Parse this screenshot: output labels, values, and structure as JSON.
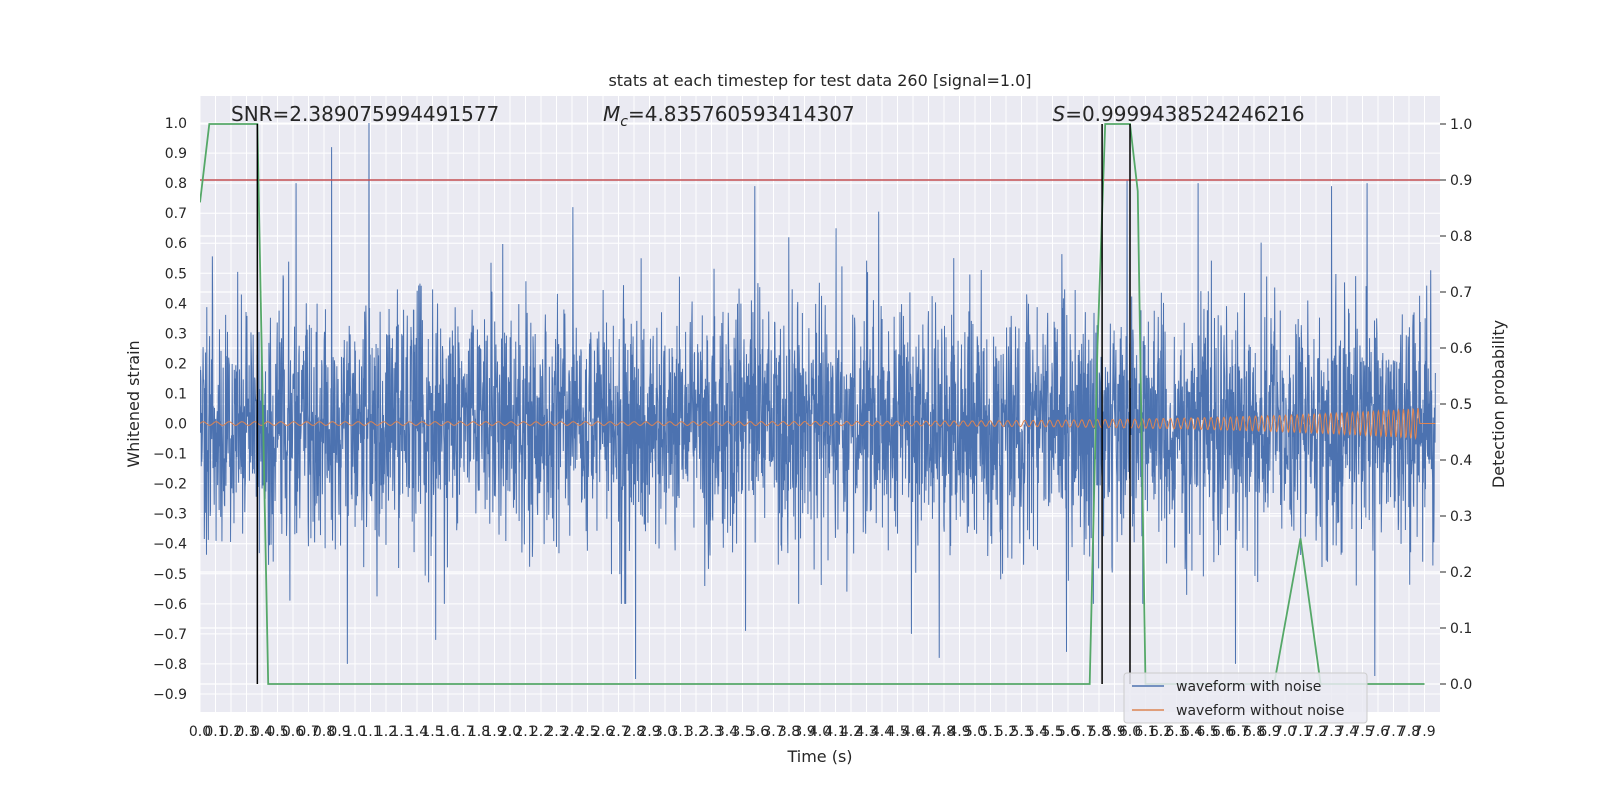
{
  "chart_data": {
    "type": "line",
    "title": "stats at each timestep for test data 260 [signal=1.0]",
    "xlabel": "Time (s)",
    "ylabel": "Whitened strain",
    "y2label": "Detection probability",
    "xlim": [
      0.0,
      8.0
    ],
    "ylim": [
      -0.96,
      1.09
    ],
    "y2lim": [
      -0.05,
      1.05
    ],
    "x_tick_step": 0.1,
    "x_tick_max": 7.9,
    "y_tick_min": -0.9,
    "y_tick_max": 1.0,
    "y_tick_step": 0.1,
    "y2_ticks": [
      0.0,
      0.1,
      0.2,
      0.3,
      0.4,
      0.5,
      0.6,
      0.7,
      0.8,
      0.9,
      1.0
    ],
    "grid": true,
    "legend_placement": "lower-right",
    "annotations": [
      {
        "key": "snr",
        "text": "SNR=2.389075994491577",
        "x": 0.2
      },
      {
        "key": "mc",
        "text": "=4.835760593414307",
        "prefix": "M",
        "sub": "c",
        "x": 2.6
      },
      {
        "key": "s",
        "text": "=0.9999438524246216",
        "prefix": "S",
        "x": 5.5
      }
    ],
    "series": [
      {
        "name": "waveform with noise",
        "color": "#4c72b0",
        "kind": "noise",
        "top_envelope_max": 1.0,
        "bottom_envelope_min": -0.85,
        "peaks": [
          [
            0.85,
            0.92
          ],
          [
            1.09,
            1.0
          ],
          [
            0.62,
            0.8
          ],
          [
            3.58,
            0.79
          ],
          [
            6.44,
            0.8
          ],
          [
            7.3,
            0.79
          ],
          [
            7.53,
            0.8
          ],
          [
            5.98,
            0.81
          ],
          [
            2.81,
            -0.85
          ],
          [
            4.77,
            -0.78
          ],
          [
            3.52,
            -0.69
          ],
          [
            0.95,
            -0.8
          ],
          [
            6.68,
            -0.8
          ],
          [
            7.58,
            -0.84
          ],
          [
            4.59,
            -0.7
          ],
          [
            5.59,
            -0.76
          ],
          [
            1.52,
            -0.72
          ]
        ]
      },
      {
        "name": "waveform without noise",
        "color": "#dd8452",
        "kind": "chirp",
        "amplitude_start": 0.006,
        "amplitude_end": 0.05,
        "merger_time": 7.86
      }
    ],
    "detection_probability": {
      "color": "#55a868",
      "x": [
        0.0,
        0.06,
        0.12,
        0.2,
        0.3,
        0.37,
        0.44,
        5.74,
        5.79,
        5.84,
        5.9,
        6.0,
        6.05,
        6.1,
        6.16,
        6.7,
        6.93,
        7.1,
        7.23,
        7.35,
        7.45,
        7.9
      ],
      "y": [
        0.86,
        1.0,
        1.0,
        1.0,
        1.0,
        1.0,
        0.0,
        0.0,
        0.6,
        1.0,
        1.0,
        1.0,
        0.88,
        0.0,
        0.0,
        0.0,
        0.0,
        0.26,
        0.0,
        0.0,
        0.0,
        0.0
      ]
    },
    "threshold": {
      "value": 0.9,
      "color": "#c44e52"
    },
    "event_markers": {
      "color": "#000000",
      "x": [
        0.37,
        5.82,
        6.0
      ]
    }
  },
  "legend": {
    "items": [
      {
        "label": "waveform with noise",
        "color": "#4c72b0"
      },
      {
        "label": "waveform without noise",
        "color": "#dd8452"
      }
    ]
  }
}
